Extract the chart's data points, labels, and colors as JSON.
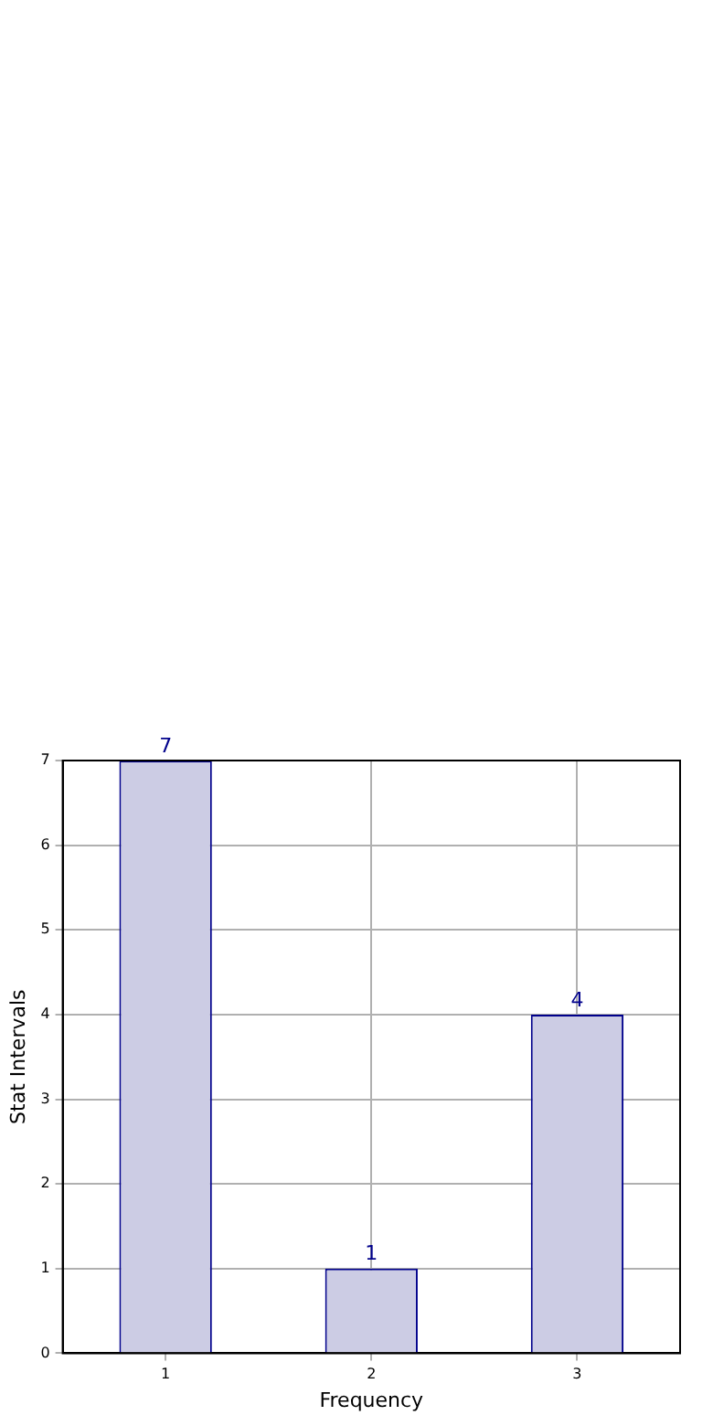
{
  "chart_data": {
    "type": "bar",
    "xlabel": "Frequency",
    "ylabel": "Stat Intervals",
    "categories": [
      "1",
      "2",
      "3"
    ],
    "values": [
      7,
      1,
      4
    ],
    "color": "#ccccE4",
    "ylim": [
      0,
      7
    ],
    "yticks": [
      0,
      1,
      2,
      3,
      4,
      5,
      6,
      7
    ],
    "grid": true,
    "data_labels": true
  }
}
